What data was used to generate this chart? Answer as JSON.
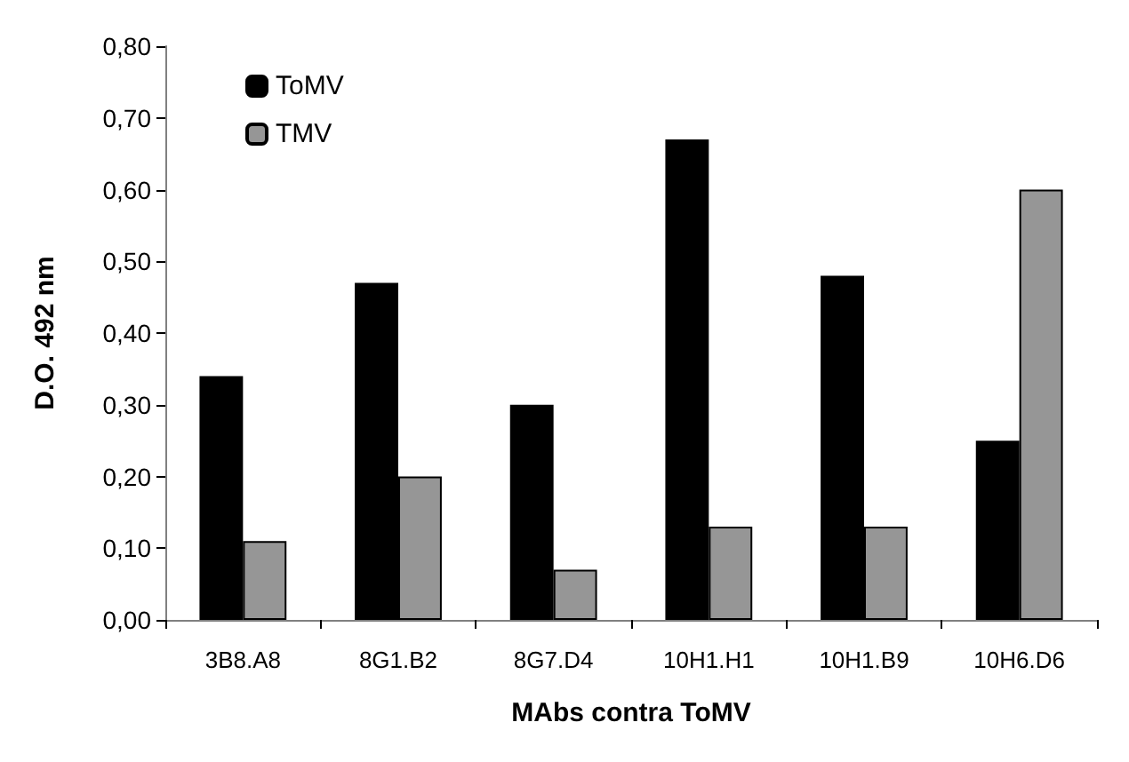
{
  "chart_data": {
    "type": "bar",
    "xlabel": "MAbs contra ToMV",
    "ylabel": "D.O. 492 nm",
    "categories": [
      "3B8.A8",
      "8G1.B2",
      "8G7.D4",
      "10H1.H1",
      "10H1.B9",
      "10H6.D6"
    ],
    "series": [
      {
        "name": "ToMV",
        "color": "#000000",
        "values": [
          0.34,
          0.47,
          0.3,
          0.67,
          0.48,
          0.25
        ]
      },
      {
        "name": "TMV",
        "color": "#969696",
        "values": [
          0.11,
          0.2,
          0.07,
          0.13,
          0.13,
          0.6
        ]
      }
    ],
    "ylim": [
      0,
      0.8
    ],
    "yticks": [
      {
        "value": 0,
        "label": "0,00"
      },
      {
        "value": 0.1,
        "label": "0,10"
      },
      {
        "value": 0.2,
        "label": "0,20"
      },
      {
        "value": 0.3,
        "label": "0,30"
      },
      {
        "value": 0.4,
        "label": "0,40"
      },
      {
        "value": 0.5,
        "label": "0,50"
      },
      {
        "value": 0.6,
        "label": "0,60"
      },
      {
        "value": 0.7,
        "label": "0,70"
      },
      {
        "value": 0.8,
        "label": "0,80"
      }
    ],
    "grid": false,
    "legend": "top left"
  }
}
